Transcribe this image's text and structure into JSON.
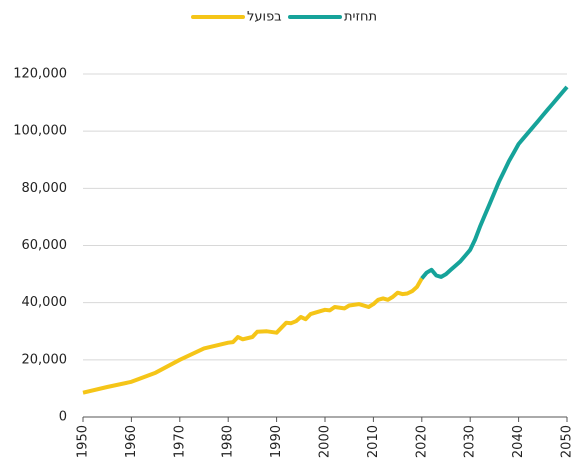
{
  "chart_data": {
    "type": "line",
    "series": [
      {
        "name": "בפועל",
        "color": "#f5c518",
        "x": [
          1950,
          1955,
          1960,
          1965,
          1970,
          1975,
          1980,
          1981,
          1982,
          1983,
          1985,
          1986,
          1988,
          1990,
          1992,
          1993,
          1994,
          1995,
          1996,
          1997,
          1999,
          2000,
          2001,
          2002,
          2004,
          2005,
          2007,
          2009,
          2010,
          2011,
          2012,
          2013,
          2014,
          2015,
          2016,
          2017,
          2018,
          2019,
          2020
        ],
        "values": [
          8500,
          10500,
          12300,
          15500,
          20000,
          24000,
          26000,
          26200,
          28000,
          27200,
          28000,
          29800,
          30000,
          29500,
          33000,
          32800,
          33500,
          35000,
          34200,
          36000,
          37000,
          37500,
          37300,
          38500,
          38000,
          39000,
          39500,
          38500,
          39500,
          41000,
          41500,
          41000,
          42000,
          43500,
          43000,
          43200,
          44000,
          45500,
          48500
        ]
      },
      {
        "name": "תחזית",
        "color": "#16a39a",
        "x": [
          2020,
          2021,
          2022,
          2023,
          2024,
          2025,
          2026,
          2027,
          2028,
          2029,
          2030,
          2031,
          2032,
          2033,
          2034,
          2035,
          2036,
          2037,
          2038,
          2039,
          2040,
          2041,
          2042,
          2043,
          2044,
          2045,
          2046,
          2047,
          2048,
          2049,
          2050
        ],
        "values": [
          48500,
          50500,
          51500,
          49500,
          49000,
          50000,
          51500,
          53000,
          54500,
          56500,
          58500,
          62000,
          66500,
          70500,
          74500,
          78500,
          82500,
          86000,
          89500,
          92500,
          95500,
          97500,
          99500,
          101500,
          103500,
          105500,
          107500,
          109500,
          111500,
          113500,
          115500
        ]
      }
    ],
    "xlim": [
      1950,
      2050
    ],
    "xticks": [
      1950,
      1960,
      1970,
      1980,
      1990,
      2000,
      2010,
      2020,
      2030,
      2040,
      2050
    ],
    "ylim": [
      0,
      120000
    ],
    "yticks": [
      0,
      {
        "value": 20000,
        "label": "20,000"
      },
      {
        "value": 40000,
        "label": "40,000"
      },
      {
        "value": 60000,
        "label": "60,000"
      },
      {
        "value": 80000,
        "label": "80,000"
      },
      {
        "value": 100000,
        "label": "100,000"
      },
      {
        "value": 120000,
        "label": "120,000"
      }
    ],
    "grid": true
  }
}
